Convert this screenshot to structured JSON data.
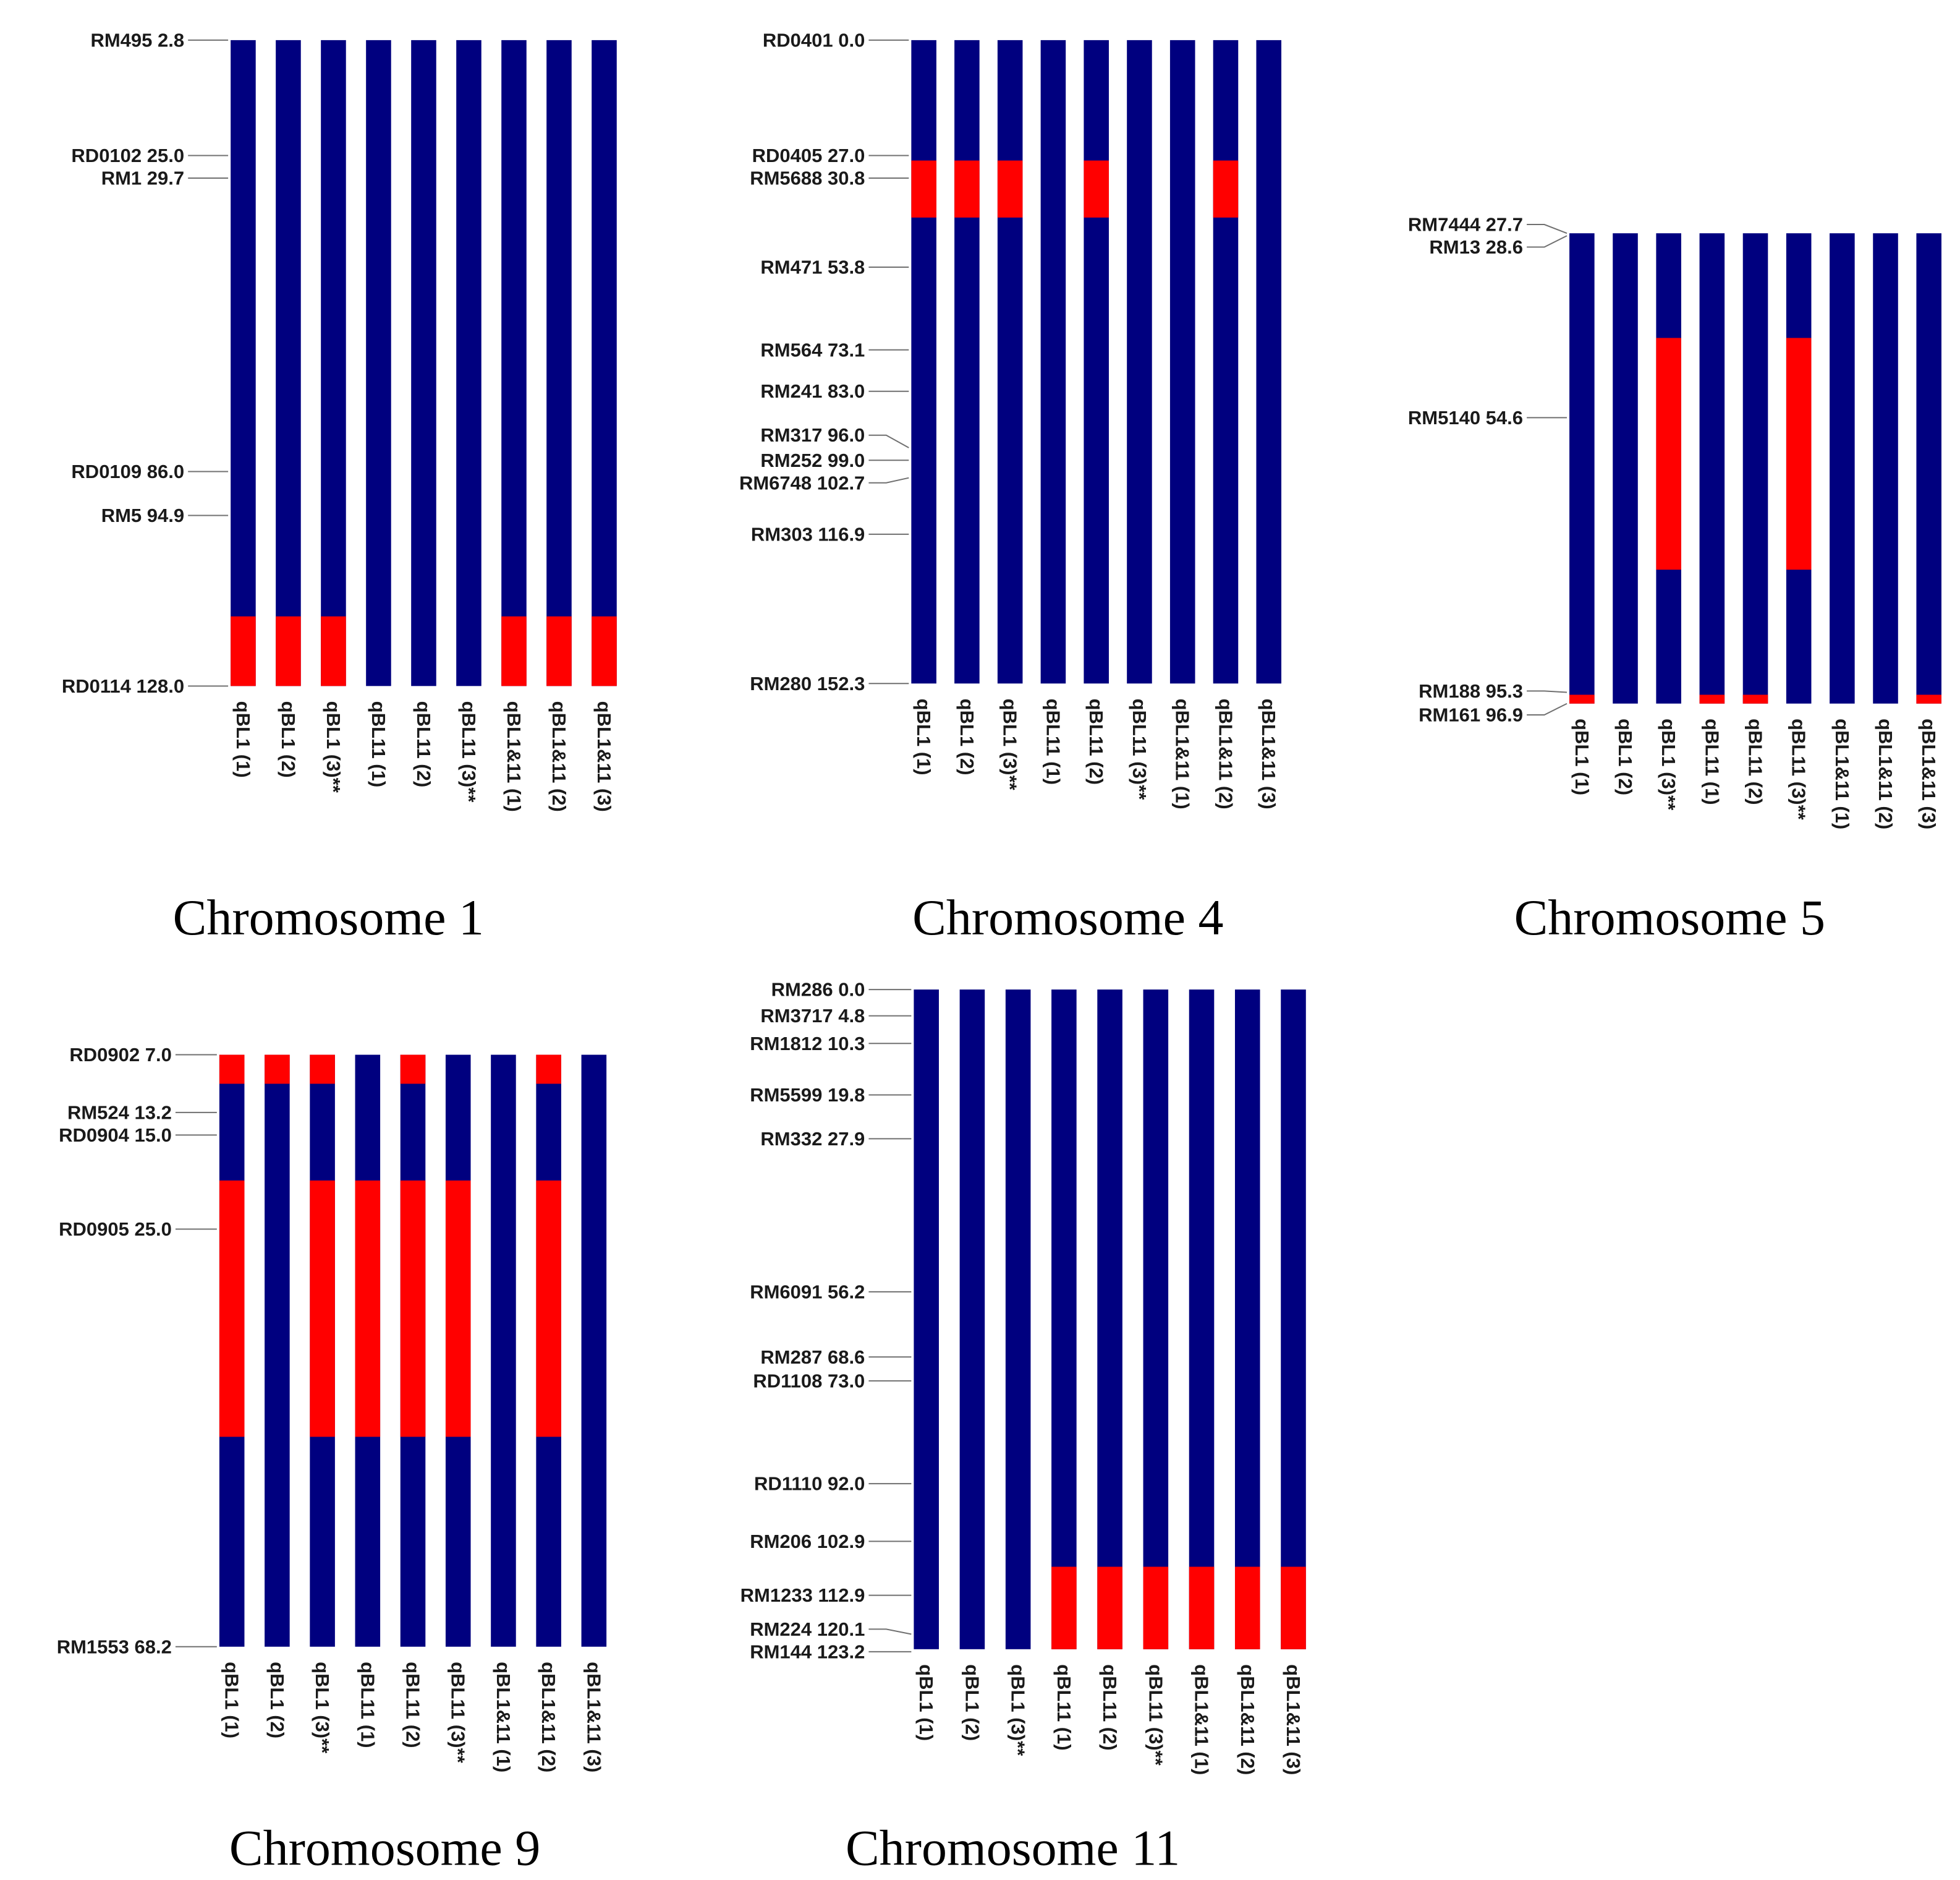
{
  "colors": {
    "background_genotype": "#00007f",
    "introgression": "#ff0000"
  },
  "line_names": [
    "qBL1 (1)",
    "qBL1 (2)",
    "qBL1 (3)**",
    "qBL11 (1)",
    "qBL11 (2)",
    "qBL11 (3)**",
    "qBL1&11 (1)",
    "qBL1&11 (2)",
    "qBL1&11 (3)"
  ],
  "chart_data": [
    {
      "type": "graphical-genotype",
      "title": "Chromosome 1",
      "markers": [
        {
          "name": "RM495",
          "pos": "2.8"
        },
        {
          "name": "RD0102",
          "pos": "25.0"
        },
        {
          "name": "RM1",
          "pos": "29.7"
        },
        {
          "name": "RD0109",
          "pos": "86.0"
        },
        {
          "name": "RM5",
          "pos": "94.9"
        },
        {
          "name": "RD0114",
          "pos": "128.0"
        }
      ],
      "range": [
        2.8,
        128.0
      ],
      "lines": [
        {
          "name": "qBL1 (1)",
          "red": [
            [
              114.5,
              128.0
            ]
          ]
        },
        {
          "name": "qBL1 (2)",
          "red": [
            [
              114.5,
              128.0
            ]
          ]
        },
        {
          "name": "qBL1 (3)**",
          "red": [
            [
              114.5,
              128.0
            ]
          ]
        },
        {
          "name": "qBL11 (1)",
          "red": []
        },
        {
          "name": "qBL11 (2)",
          "red": []
        },
        {
          "name": "qBL11 (3)**",
          "red": []
        },
        {
          "name": "qBL1&11 (1)",
          "red": [
            [
              114.5,
              128.0
            ]
          ]
        },
        {
          "name": "qBL1&11 (2)",
          "red": [
            [
              114.5,
              128.0
            ]
          ]
        },
        {
          "name": "qBL1&11 (3)",
          "red": [
            [
              114.5,
              128.0
            ]
          ]
        }
      ]
    },
    {
      "type": "graphical-genotype",
      "title": "Chromosome 4",
      "markers": [
        {
          "name": "RD0401",
          "pos": "0.0"
        },
        {
          "name": "RD0405",
          "pos": "27.0"
        },
        {
          "name": "RM5688",
          "pos": "30.8"
        },
        {
          "name": "RM471",
          "pos": "53.8"
        },
        {
          "name": "RM564",
          "pos": "73.1"
        },
        {
          "name": "RM241",
          "pos": "83.0"
        },
        {
          "name": "RM317",
          "pos": "96.0"
        },
        {
          "name": "RM252",
          "pos": "99.0"
        },
        {
          "name": "RM6748",
          "pos": "102.7"
        },
        {
          "name": "RM303",
          "pos": "116.9"
        },
        {
          "name": "RM280",
          "pos": "152.3"
        }
      ],
      "range": [
        0.0,
        152.3
      ],
      "lines": [
        {
          "name": "qBL1 (1)",
          "red": [
            [
              28.5,
              42.0
            ]
          ]
        },
        {
          "name": "qBL1 (2)",
          "red": [
            [
              28.5,
              42.0
            ]
          ]
        },
        {
          "name": "qBL1 (3)**",
          "red": [
            [
              28.5,
              42.0
            ]
          ]
        },
        {
          "name": "qBL11 (1)",
          "red": []
        },
        {
          "name": "qBL11 (2)",
          "red": [
            [
              28.5,
              42.0
            ]
          ]
        },
        {
          "name": "qBL11 (3)**",
          "red": []
        },
        {
          "name": "qBL1&11 (1)",
          "red": []
        },
        {
          "name": "qBL1&11 (2)",
          "red": [
            [
              28.5,
              42.0
            ]
          ]
        },
        {
          "name": "qBL1&11 (3)",
          "red": []
        }
      ]
    },
    {
      "type": "graphical-genotype",
      "title": "Chromosome 5",
      "markers": [
        {
          "name": "RM7444",
          "pos": "27.7"
        },
        {
          "name": "RM13",
          "pos": "28.6"
        },
        {
          "name": "RM5140",
          "pos": "54.6"
        },
        {
          "name": "RM188",
          "pos": "95.3"
        },
        {
          "name": "RM161",
          "pos": "96.9"
        }
      ],
      "range": [
        27.7,
        96.9
      ],
      "lines": [
        {
          "name": "qBL1 (1)",
          "red": [
            [
              95.6,
              96.9
            ]
          ]
        },
        {
          "name": "qBL1 (2)",
          "red": []
        },
        {
          "name": "qBL1 (3)**",
          "red": [
            [
              43.1,
              77.2
            ]
          ]
        },
        {
          "name": "qBL11 (1)",
          "red": [
            [
              95.6,
              96.9
            ]
          ]
        },
        {
          "name": "qBL11 (2)",
          "red": [
            [
              95.6,
              96.9
            ]
          ]
        },
        {
          "name": "qBL11 (3)**",
          "red": [
            [
              43.1,
              77.2
            ]
          ]
        },
        {
          "name": "qBL1&11 (1)",
          "red": []
        },
        {
          "name": "qBL1&11 (2)",
          "red": []
        },
        {
          "name": "qBL1&11 (3)",
          "red": [
            [
              95.6,
              96.9
            ]
          ]
        }
      ]
    },
    {
      "type": "graphical-genotype",
      "title": "Chromosome 9",
      "markers": [
        {
          "name": "RD0902",
          "pos": "7.0"
        },
        {
          "name": "RM524",
          "pos": "13.2"
        },
        {
          "name": "RD0904",
          "pos": "15.0"
        },
        {
          "name": "RD0905",
          "pos": "25.0"
        },
        {
          "name": "RM1553",
          "pos": "68.2"
        }
      ],
      "range": [
        7.0,
        68.2
      ],
      "lines": [
        {
          "name": "qBL1 (1)",
          "red": [
            [
              7.0,
              10.0
            ],
            [
              20.0,
              46.5
            ]
          ]
        },
        {
          "name": "qBL1 (2)",
          "red": [
            [
              7.0,
              10.0
            ]
          ]
        },
        {
          "name": "qBL1 (3)**",
          "red": [
            [
              7.0,
              10.0
            ],
            [
              20.0,
              46.5
            ]
          ]
        },
        {
          "name": "qBL11 (1)",
          "red": [
            [
              20.0,
              46.5
            ]
          ]
        },
        {
          "name": "qBL11 (2)",
          "red": [
            [
              7.0,
              10.0
            ],
            [
              20.0,
              46.5
            ]
          ]
        },
        {
          "name": "qBL11 (3)**",
          "red": [
            [
              20.0,
              46.5
            ]
          ]
        },
        {
          "name": "qBL1&11 (1)",
          "red": []
        },
        {
          "name": "qBL1&11 (2)",
          "red": [
            [
              7.0,
              10.0
            ],
            [
              20.0,
              46.5
            ]
          ]
        },
        {
          "name": "qBL1&11 (3)",
          "red": []
        }
      ]
    },
    {
      "type": "graphical-genotype",
      "title": "Chromosome 11",
      "markers": [
        {
          "name": "RM286",
          "pos": "0.0"
        },
        {
          "name": "RM3717",
          "pos": "4.8"
        },
        {
          "name": "RM1812",
          "pos": "10.3"
        },
        {
          "name": "RM5599",
          "pos": "19.8"
        },
        {
          "name": "RM332",
          "pos": "27.9"
        },
        {
          "name": "RM6091",
          "pos": "56.2"
        },
        {
          "name": "RM287",
          "pos": "68.6"
        },
        {
          "name": "RD1108",
          "pos": "73.0"
        },
        {
          "name": "RD1110",
          "pos": "92.0"
        },
        {
          "name": "RM206",
          "pos": "102.9"
        },
        {
          "name": "RM1233",
          "pos": "112.9"
        },
        {
          "name": "RM224",
          "pos": "120.1"
        },
        {
          "name": "RM144",
          "pos": "123.2"
        }
      ],
      "range": [
        0.0,
        123.2
      ],
      "lines": [
        {
          "name": "qBL1 (1)",
          "red": []
        },
        {
          "name": "qBL1 (2)",
          "red": []
        },
        {
          "name": "qBL1 (3)**",
          "red": []
        },
        {
          "name": "qBL11 (1)",
          "red": [
            [
              107.8,
              123.2
            ]
          ]
        },
        {
          "name": "qBL11 (2)",
          "red": [
            [
              107.8,
              123.2
            ]
          ]
        },
        {
          "name": "qBL11 (3)**",
          "red": [
            [
              107.8,
              123.2
            ]
          ]
        },
        {
          "name": "qBL1&11 (1)",
          "red": [
            [
              107.8,
              123.2
            ]
          ]
        },
        {
          "name": "qBL1&11 (2)",
          "red": [
            [
              107.8,
              123.2
            ]
          ]
        },
        {
          "name": "qBL1&11 (3)",
          "red": [
            [
              107.8,
              123.2
            ]
          ]
        }
      ]
    }
  ]
}
